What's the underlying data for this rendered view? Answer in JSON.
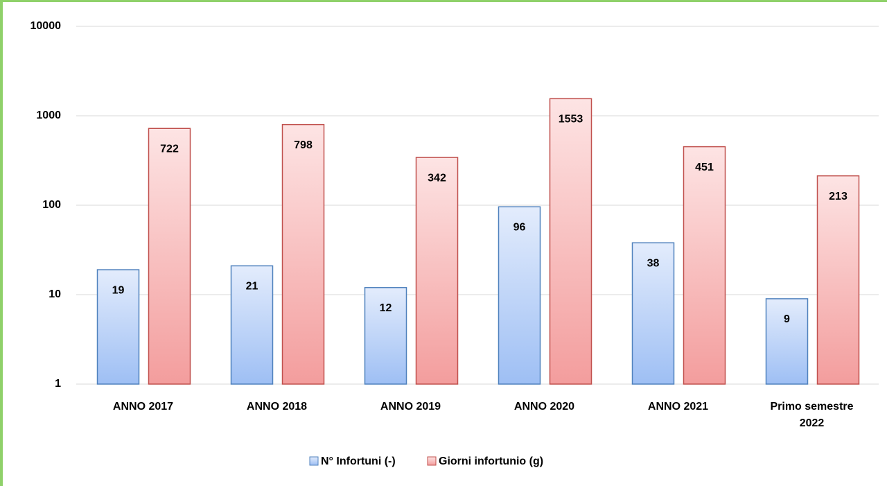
{
  "chart_data": {
    "type": "bar",
    "categories": [
      "ANNO 2017",
      "ANNO 2018",
      "ANNO 2019",
      "ANNO 2020",
      "ANNO 2021",
      "Primo semestre 2022"
    ],
    "series": [
      {
        "name": "N° Infortuni (-)",
        "color": "#4f81bd",
        "values": [
          19,
          21,
          12,
          96,
          38,
          9
        ]
      },
      {
        "name": "Giorni infortunio (g)",
        "color": "#c0504d",
        "values": [
          722,
          798,
          342,
          1553,
          451,
          213
        ]
      }
    ],
    "yscale": "log",
    "ylim": [
      1,
      10000
    ],
    "yticks": [
      1,
      10,
      100,
      1000,
      10000
    ],
    "grid": true,
    "legend": "bottom"
  }
}
